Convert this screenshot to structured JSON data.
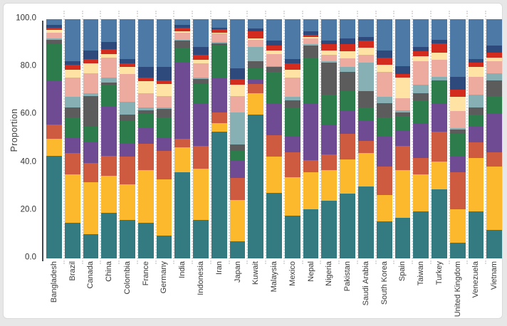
{
  "page": {
    "background_color": "#e7e7e7",
    "card_background": "#ffffff",
    "axis_color": "#3f4a55",
    "gridline_color": "#dcdcdc"
  },
  "chart_data": {
    "type": "bar",
    "variant": "stacked-100-percent",
    "title": "",
    "xlabel": "",
    "ylabel": "Proportion",
    "ylim": [
      0,
      100
    ],
    "grid": "vertical dotted lines between categories",
    "legend": "none",
    "yticks": [
      {
        "value": 0,
        "label": "0.0"
      },
      {
        "value": 20,
        "label": "20.0"
      },
      {
        "value": 40,
        "label": "40.0"
      },
      {
        "value": 60,
        "label": "60.0"
      },
      {
        "value": 80,
        "label": "80.0"
      },
      {
        "value": 100,
        "label": "100.0"
      }
    ],
    "categories": [
      "Bangladesh",
      "Brazil",
      "Canada",
      "China",
      "Colombia",
      "France",
      "Germany",
      "India",
      "Indonesia",
      "Iran",
      "Japan",
      "Kuwait",
      "Malaysia",
      "Mexico",
      "Nepal",
      "Nigeria",
      "Pakistan",
      "Saudi Arabia",
      "South Korea",
      "Spain",
      "Taiwan",
      "Turkey",
      "United Kingdom",
      "Venezuela",
      "Vietnam"
    ],
    "series": [
      {
        "name": "teal",
        "color": "#337b80",
        "values": [
          43,
          15,
          10,
          19,
          16,
          15,
          9.5,
          36,
          16,
          53,
          7,
          60,
          27.5,
          18,
          20.5,
          24,
          27,
          30,
          15.5,
          17,
          19.5,
          29,
          6.5,
          19.5,
          12
        ]
      },
      {
        "name": "amber",
        "color": "#fdb92e",
        "values": [
          7,
          20,
          22,
          15.5,
          15,
          22,
          23.5,
          10.5,
          21.5,
          3.5,
          17.5,
          9,
          15,
          16,
          15.5,
          13,
          14.5,
          14,
          11,
          20,
          15.5,
          11.5,
          14,
          22.5,
          26.5
        ]
      },
      {
        "name": "rust",
        "color": "#ce5a40",
        "values": [
          6,
          9,
          8,
          8.5,
          11.5,
          11,
          12,
          3.5,
          9.5,
          4.5,
          9,
          4,
          9,
          10.5,
          5,
          6.5,
          10.5,
          5,
          12,
          10,
          7,
          12.5,
          15.5,
          6.5,
          6
        ]
      },
      {
        "name": "purple",
        "color": "#6f4b94",
        "values": [
          18,
          6.5,
          8.5,
          20.5,
          5.5,
          6.5,
          5.5,
          32,
          17.5,
          14.5,
          7.5,
          2,
          13,
          6.5,
          23.5,
          12.5,
          10,
          8.5,
          12.5,
          6.5,
          14.5,
          12,
          6.5,
          7,
          16
        ]
      },
      {
        "name": "green",
        "color": "#2d7c4b",
        "values": [
          15.5,
          8.5,
          6.5,
          9,
          9.5,
          6,
          8.5,
          6,
          8.5,
          13.5,
          4,
          4.5,
          13.5,
          12,
          19.5,
          12.5,
          8,
          5.5,
          8,
          6,
          9.5,
          9,
          9.5,
          4.5,
          7.5
        ]
      },
      {
        "name": "gray",
        "color": "#5c5c5c",
        "values": [
          2,
          4,
          13,
          1,
          2.5,
          1.5,
          3.5,
          3,
          2,
          1,
          2.5,
          3,
          2,
          3,
          5,
          13.5,
          8,
          7,
          6,
          1.5,
          3,
          0.5,
          2,
          3,
          6.5
        ]
      },
      {
        "name": "cadet-blue",
        "color": "#87b0b4",
        "values": [
          0.5,
          4.5,
          1,
          2,
          5.5,
          1,
          0.5,
          0.5,
          0.5,
          0.5,
          13.5,
          6,
          0.5,
          1.5,
          0.5,
          0.5,
          2,
          12,
          2.5,
          1,
          3.5,
          1.5,
          0.5,
          5.5,
          3
        ]
      },
      {
        "name": "pink",
        "color": "#edaa9e",
        "values": [
          2.5,
          8,
          8.5,
          8.5,
          11.5,
          6,
          5,
          3,
          6,
          3.5,
          7,
          3,
          5,
          8,
          2.5,
          2.5,
          3.5,
          3,
          10.5,
          5,
          10,
          7,
          7,
          7.5,
          5
        ]
      },
      {
        "name": "cream",
        "color": "#fee3a5",
        "values": [
          1,
          3.5,
          4,
          1.5,
          3,
          5,
          5,
          0.5,
          1.5,
          0.5,
          4.5,
          0.5,
          1.5,
          3.5,
          0.5,
          2,
          3,
          3,
          3,
          8.5,
          2,
          3,
          6,
          4,
          1.5
        ]
      },
      {
        "name": "red",
        "color": "#d32b1e",
        "values": [
          1,
          2,
          2,
          2,
          1.5,
          1.5,
          1.5,
          1.5,
          2,
          1.5,
          2.5,
          3,
          2,
          2.5,
          1,
          2.5,
          3,
          3,
          3,
          1.5,
          2,
          4,
          3,
          2,
          2
        ]
      },
      {
        "name": "navy",
        "color": "#2e4a7d",
        "values": [
          1,
          1.5,
          3.5,
          3,
          2,
          4.5,
          5.5,
          1,
          3.5,
          0.5,
          4.5,
          1,
          2,
          2,
          1.5,
          1.5,
          2.5,
          1.5,
          3,
          3.5,
          2,
          1.5,
          5.5,
          1.5,
          3
        ]
      },
      {
        "name": "steel-blue",
        "color": "#4d79a7",
        "values": [
          2.5,
          17.5,
          13,
          9.5,
          16.5,
          20,
          20,
          2.5,
          11.5,
          3.5,
          20.5,
          4,
          9,
          16.5,
          5,
          9,
          8,
          7.5,
          13,
          19.5,
          11.5,
          8.5,
          24,
          16.5,
          11
        ]
      }
    ]
  }
}
